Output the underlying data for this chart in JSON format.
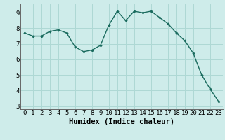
{
  "x": [
    0,
    1,
    2,
    3,
    4,
    5,
    6,
    7,
    8,
    9,
    10,
    11,
    12,
    13,
    14,
    15,
    16,
    17,
    18,
    19,
    20,
    21,
    22,
    23
  ],
  "y": [
    7.7,
    7.5,
    7.5,
    7.8,
    7.9,
    7.7,
    6.8,
    6.5,
    6.6,
    6.9,
    8.2,
    9.1,
    8.5,
    9.1,
    9.0,
    9.1,
    8.7,
    8.3,
    7.7,
    7.2,
    6.4,
    5.0,
    4.1,
    3.3
  ],
  "line_color": "#1a6b5e",
  "marker": "D",
  "marker_size": 2.2,
  "bg_color": "#ceecea",
  "grid_color": "#aed8d4",
  "xlabel": "Humidex (Indice chaleur)",
  "ylim": [
    2.8,
    9.55
  ],
  "xlim": [
    -0.5,
    23.5
  ],
  "yticks": [
    3,
    4,
    5,
    6,
    7,
    8,
    9
  ],
  "xticks": [
    0,
    1,
    2,
    3,
    4,
    5,
    6,
    7,
    8,
    9,
    10,
    11,
    12,
    13,
    14,
    15,
    16,
    17,
    18,
    19,
    20,
    21,
    22,
    23
  ],
  "tick_label_fontsize": 6.5,
  "xlabel_fontsize": 7.5,
  "line_width": 1.0
}
